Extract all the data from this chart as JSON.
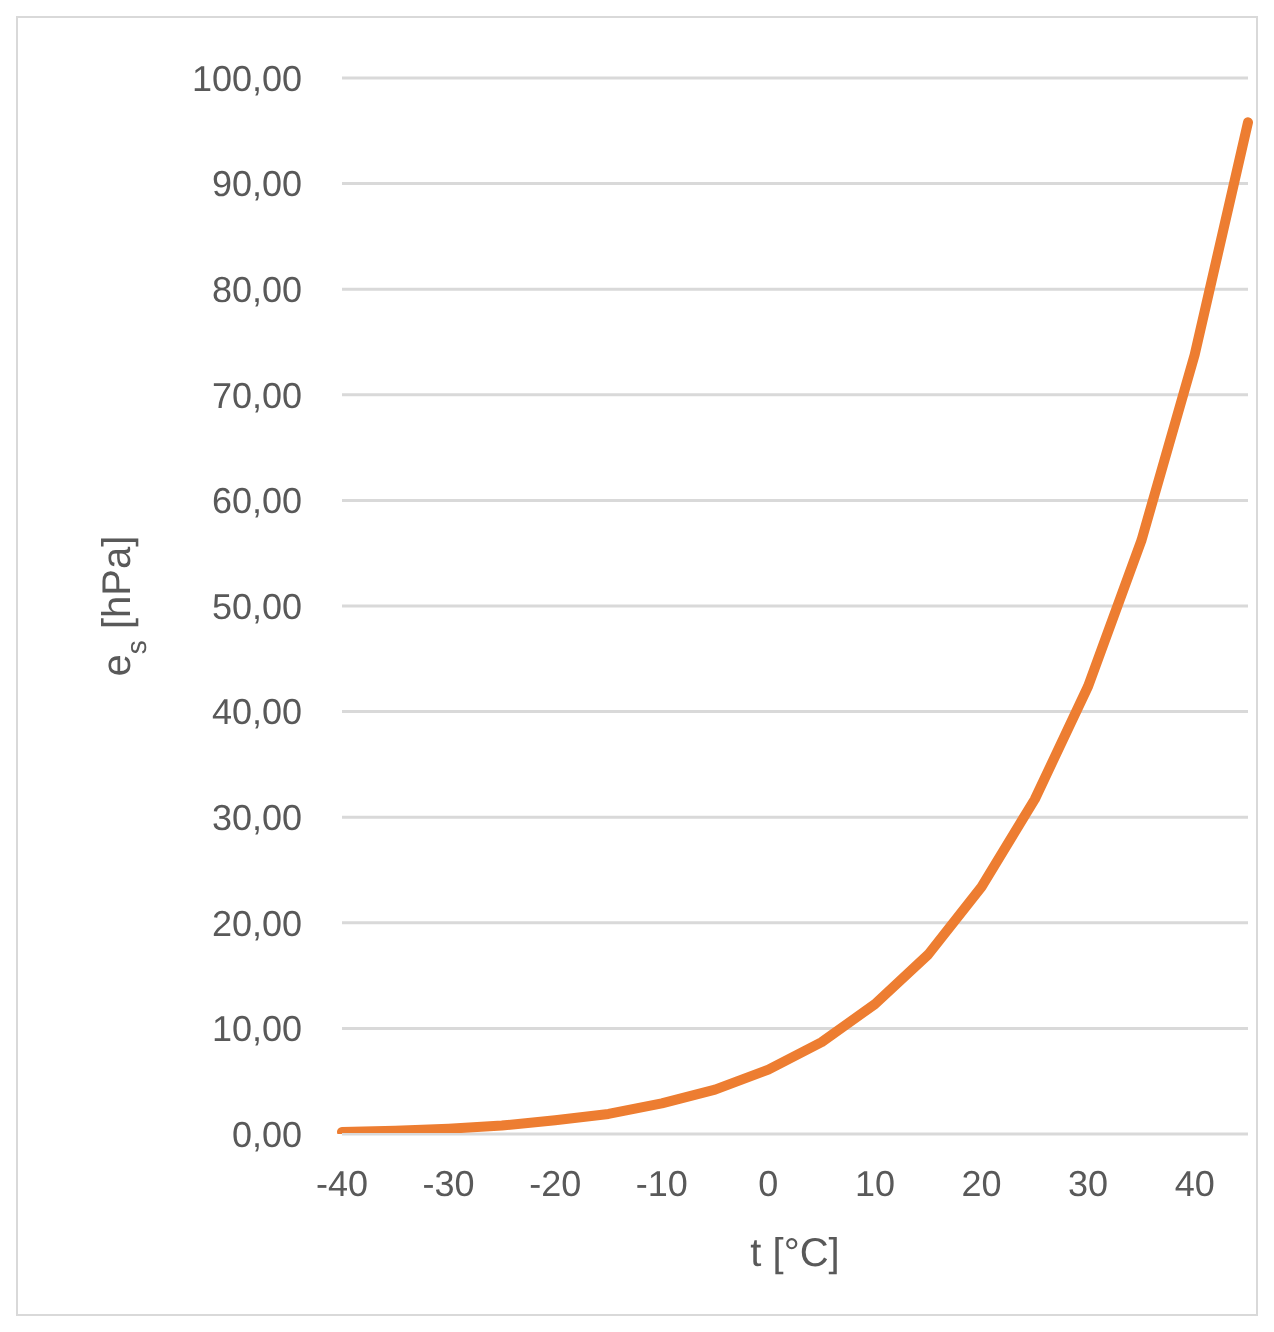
{
  "chart_data": {
    "type": "line",
    "xlabel": "t [°C]",
    "ylabel": "e$_{s}$ [hPa]",
    "categories": [
      "-40",
      null,
      "-30",
      null,
      "-20",
      null,
      "-10",
      null,
      "0",
      null,
      "10",
      null,
      "20",
      null,
      "30",
      null,
      "40",
      null
    ],
    "series": [
      {
        "color": "#ed7d31",
        "values": [
          0.2,
          0.3,
          0.5,
          0.8,
          1.3,
          1.9,
          2.9,
          4.2,
          6.1,
          8.7,
          12.3,
          17.0,
          23.4,
          31.7,
          42.4,
          56.2,
          73.8,
          95.8
        ]
      }
    ],
    "ylim": [
      0,
      100
    ],
    "yticks": [
      {
        "value": 0,
        "label": "0,00"
      },
      {
        "value": 10,
        "label": "10,00"
      },
      {
        "value": 20,
        "label": "20,00"
      },
      {
        "value": 30,
        "label": "30,00"
      },
      {
        "value": 40,
        "label": "40,00"
      },
      {
        "value": 50,
        "label": "50,00"
      },
      {
        "value": 60,
        "label": "60,00"
      },
      {
        "value": 70,
        "label": "70,00"
      },
      {
        "value": 80,
        "label": "80,00"
      },
      {
        "value": 90,
        "label": "90,00"
      },
      {
        "value": 100,
        "label": "100,00"
      }
    ],
    "grid": "y",
    "marker": "none",
    "line_style": "solid"
  }
}
